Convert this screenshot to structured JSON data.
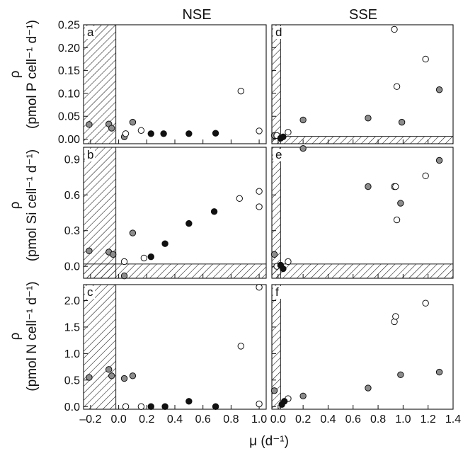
{
  "figure": {
    "col_titles": [
      "NSE",
      "SSE"
    ],
    "row_ylabels": [
      {
        "sym": "ρ",
        "unit": "(pmol P cell⁻¹ d⁻¹)"
      },
      {
        "sym": "ρ",
        "unit": "(pmol Si cell⁻¹ d⁻¹)"
      },
      {
        "sym": "ρ",
        "unit": "(pmol N cell⁻¹ d⁻¹)"
      }
    ],
    "xlabel": "μ (d⁻¹)"
  },
  "chart_data": [
    {
      "type": "scatter",
      "panel_label": "a",
      "xlim": [
        -0.25,
        1.05
      ],
      "ylim": [
        -0.01,
        0.25
      ],
      "yticks": [
        0.0,
        0.05,
        0.1,
        0.15,
        0.2,
        0.25
      ],
      "ytick_labels": [
        "0.00",
        "0.05",
        "0.10",
        "0.15",
        "0.20",
        "0.25"
      ],
      "hatch_x_max": -0.02,
      "hatch_y_max": null,
      "series": [
        {
          "fill": "#8c8c8c",
          "x": [
            -0.21,
            -0.07,
            -0.05,
            0.04,
            0.1
          ],
          "y": [
            0.032,
            0.033,
            0.024,
            0.005,
            0.037
          ]
        },
        {
          "fill": "#ffffff",
          "x": [
            0.05,
            0.16,
            0.87,
            1.0
          ],
          "y": [
            0.012,
            0.019,
            0.105,
            0.018
          ]
        },
        {
          "fill": "#111111",
          "x": [
            0.23,
            0.32,
            0.5,
            0.69
          ],
          "y": [
            0.012,
            0.012,
            0.012,
            0.013
          ]
        }
      ]
    },
    {
      "type": "scatter",
      "panel_label": "d",
      "xlim": [
        -0.05,
        1.4
      ],
      "ylim": [
        -0.01,
        0.25
      ],
      "yticks": [
        0.0,
        0.05,
        0.1,
        0.15,
        0.2,
        0.25
      ],
      "ytick_labels": [],
      "hatch_x_max": 0.02,
      "hatch_y_max": 0.006,
      "series": [
        {
          "fill": "#8c8c8c",
          "x": [
            -0.03,
            0.2,
            0.72,
            0.99,
            1.29
          ],
          "y": [
            0.008,
            0.042,
            0.046,
            0.037,
            0.108
          ]
        },
        {
          "fill": "#ffffff",
          "x": [
            -0.01,
            0.08,
            0.93,
            0.95,
            1.18
          ],
          "y": [
            0.008,
            0.015,
            0.24,
            0.115,
            0.175
          ]
        },
        {
          "fill": "#111111",
          "x": [
            0.02,
            0.04
          ],
          "y": [
            0.002,
            0.005
          ]
        }
      ]
    },
    {
      "type": "scatter",
      "panel_label": "b",
      "xlim": [
        -0.25,
        1.05
      ],
      "ylim": [
        -0.1,
        1.0
      ],
      "yticks": [
        0.0,
        0.3,
        0.6,
        0.9
      ],
      "ytick_labels": [
        "0.0",
        "0.3",
        "0.6",
        "0.9"
      ],
      "hatch_x_max": -0.02,
      "hatch_y_max": 0.02,
      "series": [
        {
          "fill": "#8c8c8c",
          "x": [
            -0.21,
            -0.07,
            -0.04,
            0.04,
            0.1
          ],
          "y": [
            0.13,
            0.12,
            0.1,
            -0.08,
            0.28
          ]
        },
        {
          "fill": "#ffffff",
          "x": [
            0.04,
            0.18,
            0.86,
            1.0,
            1.0
          ],
          "y": [
            0.04,
            0.07,
            0.57,
            0.63,
            0.5
          ]
        },
        {
          "fill": "#111111",
          "x": [
            0.23,
            0.33,
            0.5,
            0.68
          ],
          "y": [
            0.08,
            0.19,
            0.36,
            0.46
          ]
        }
      ]
    },
    {
      "type": "scatter",
      "panel_label": "e",
      "xlim": [
        -0.05,
        1.4
      ],
      "ylim": [
        -0.1,
        1.0
      ],
      "yticks": [
        0.0,
        0.3,
        0.6,
        0.9
      ],
      "ytick_labels": [],
      "hatch_x_max": 0.02,
      "hatch_y_max": 0.02,
      "series": [
        {
          "fill": "#8c8c8c",
          "x": [
            -0.03,
            0.2,
            0.72,
            0.98,
            1.29
          ],
          "y": [
            0.1,
            0.99,
            0.67,
            0.53,
            0.89
          ]
        },
        {
          "fill": "#ffffff",
          "x": [
            -0.01,
            0.08,
            0.93,
            0.94,
            0.95,
            1.18
          ],
          "y": [
            0.0,
            0.04,
            0.67,
            0.67,
            0.39,
            0.76
          ]
        },
        {
          "fill": "#111111",
          "x": [
            0.02,
            0.04
          ],
          "y": [
            0.01,
            -0.02
          ]
        }
      ]
    },
    {
      "type": "scatter",
      "panel_label": "c",
      "xlim": [
        -0.25,
        1.05
      ],
      "ylim": [
        -0.05,
        2.3
      ],
      "yticks": [
        0.0,
        0.5,
        1.0,
        1.5,
        2.0
      ],
      "ytick_labels": [
        "0.0",
        "0.5",
        "1.0",
        "1.5",
        "2.0"
      ],
      "hatch_x_max": -0.02,
      "hatch_y_max": null,
      "series": [
        {
          "fill": "#8c8c8c",
          "x": [
            -0.21,
            -0.07,
            -0.05,
            0.04,
            0.1
          ],
          "y": [
            0.55,
            0.7,
            0.58,
            0.53,
            0.58
          ]
        },
        {
          "fill": "#ffffff",
          "x": [
            0.05,
            0.16,
            0.87,
            1.0,
            1.0
          ],
          "y": [
            0.0,
            0.0,
            1.14,
            2.25,
            0.05
          ]
        },
        {
          "fill": "#111111",
          "x": [
            0.23,
            0.33,
            0.5,
            0.69
          ],
          "y": [
            0.0,
            0.0,
            0.1,
            0.0
          ]
        }
      ]
    },
    {
      "type": "scatter",
      "panel_label": "f",
      "xlim": [
        -0.05,
        1.4
      ],
      "ylim": [
        -0.05,
        2.3
      ],
      "yticks": [
        0.0,
        0.5,
        1.0,
        1.5,
        2.0
      ],
      "ytick_labels": [],
      "hatch_x_max": 0.02,
      "hatch_y_max": null,
      "series": [
        {
          "fill": "#8c8c8c",
          "x": [
            -0.03,
            0.2,
            0.72,
            0.98,
            1.29
          ],
          "y": [
            0.3,
            0.2,
            0.35,
            0.6,
            0.65
          ]
        },
        {
          "fill": "#ffffff",
          "x": [
            0.08,
            0.93,
            0.94,
            1.18
          ],
          "y": [
            0.15,
            1.6,
            1.7,
            1.95
          ]
        },
        {
          "fill": "#111111",
          "x": [
            0.03,
            0.05
          ],
          "y": [
            0.04,
            0.1
          ]
        }
      ]
    }
  ],
  "shared_x": {
    "left_ticks": [
      -0.2,
      0.0,
      0.2,
      0.4,
      0.6,
      0.8,
      1.0
    ],
    "left_labels": [
      "–0.2",
      "0.0",
      "0.2",
      "0.4",
      "0.6",
      "0.8",
      "1.0"
    ],
    "right_ticks": [
      0.0,
      0.2,
      0.4,
      0.6,
      0.8,
      1.0,
      1.2,
      1.4
    ],
    "right_labels": [
      "0.0",
      "0.2",
      "0.4",
      "0.6",
      "0.8",
      "1.0",
      "1.2",
      "1.4"
    ]
  }
}
